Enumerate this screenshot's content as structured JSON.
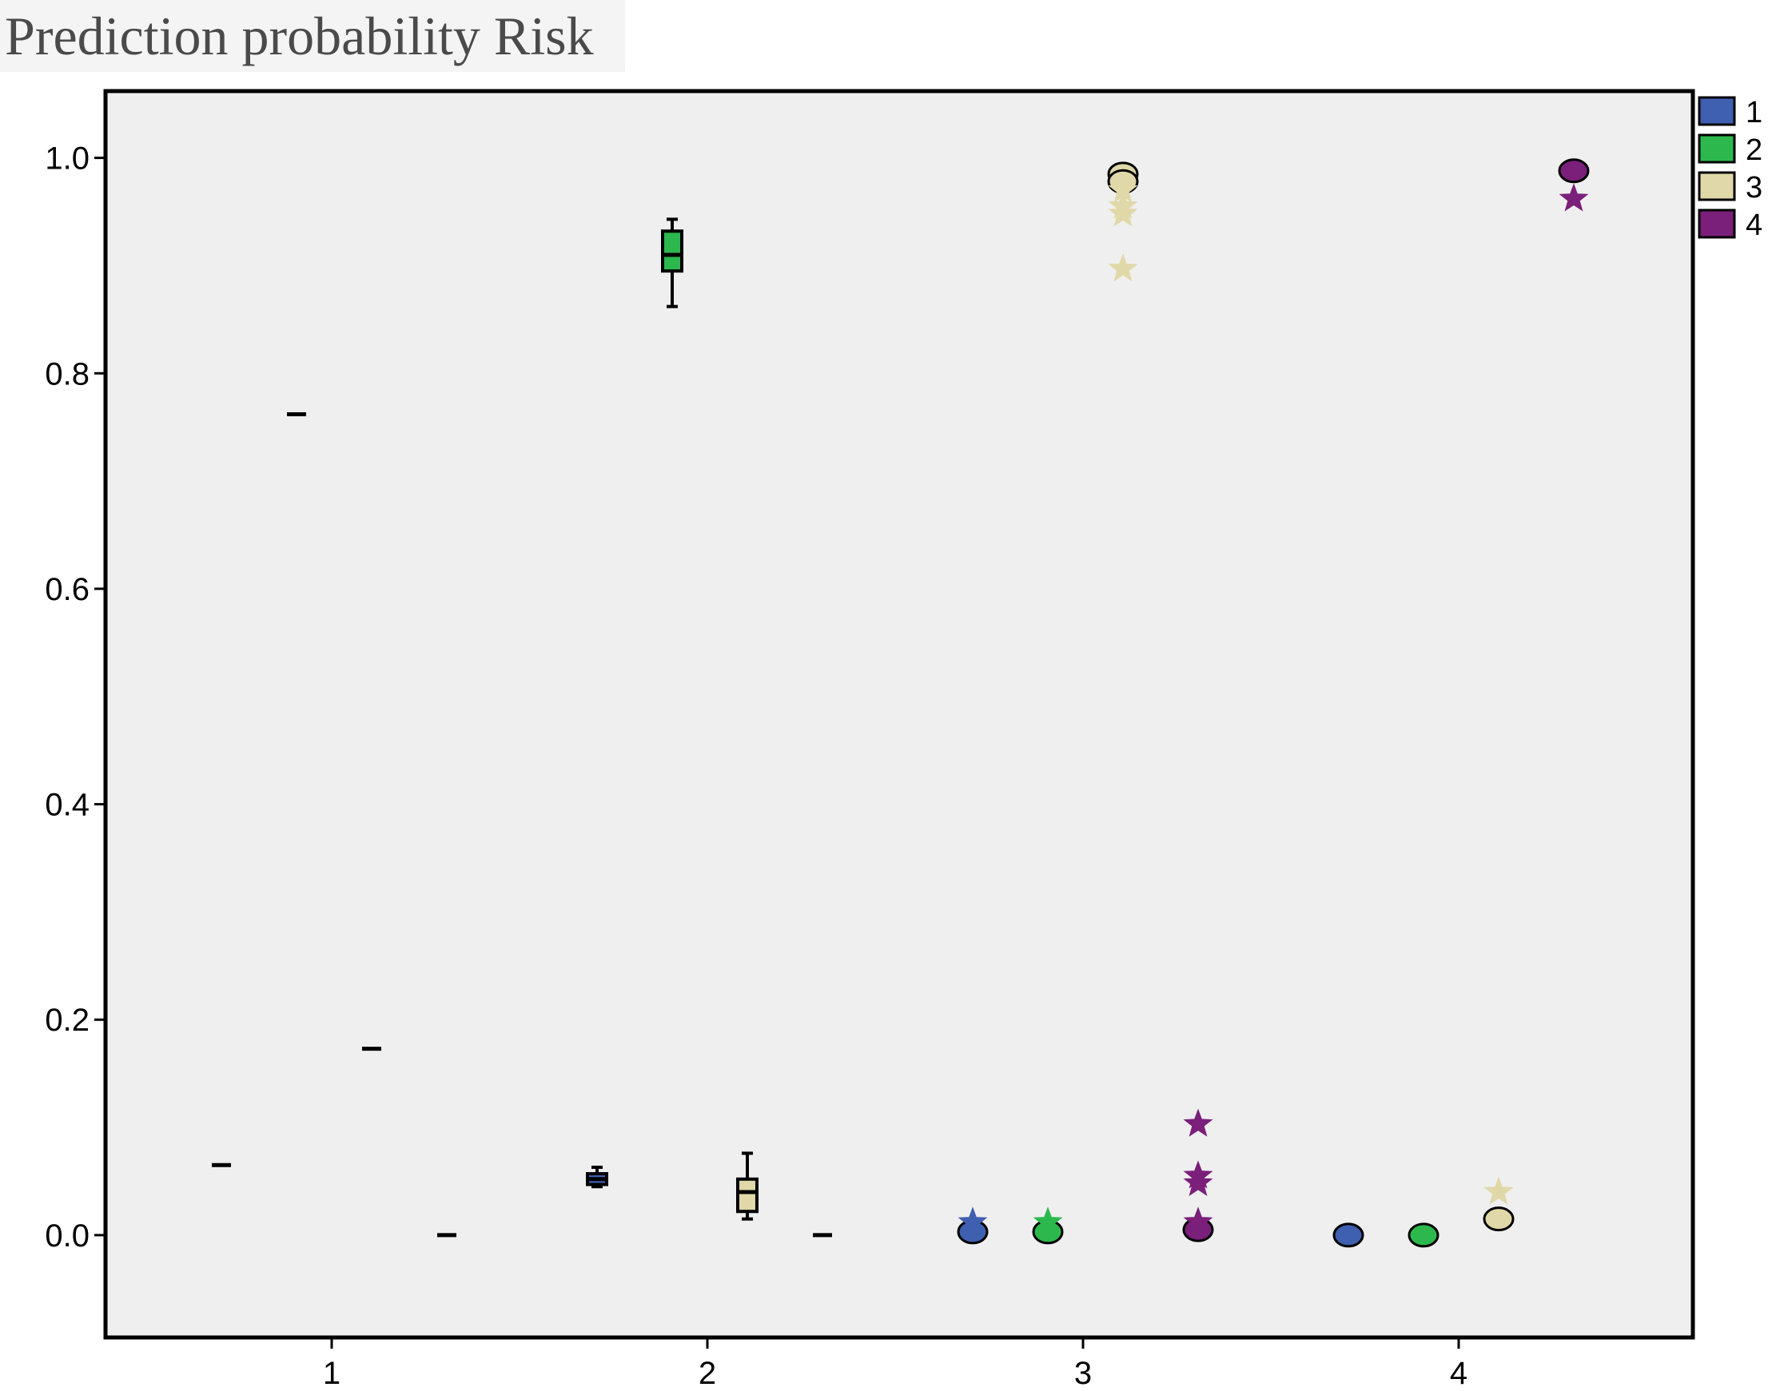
{
  "chart_data": {
    "type": "box",
    "title": "Prediction probability Risk",
    "xlabel": "",
    "ylabel": "",
    "ylim": [
      -0.095,
      1.062
    ],
    "x_ticks": [
      "1",
      "2",
      "3",
      "4"
    ],
    "y_ticks": [
      "0.0",
      "0.2",
      "0.4",
      "0.6",
      "0.8",
      "1.0"
    ],
    "legend_placement": "right",
    "series": [
      {
        "name": "1",
        "color": "#3f5fb0"
      },
      {
        "name": "2",
        "color": "#2db84d"
      },
      {
        "name": "3",
        "color": "#e0d8a8"
      },
      {
        "name": "4",
        "color": "#7a1f7a"
      }
    ],
    "boxes": [
      {
        "group": "1",
        "series": "1",
        "min": 0.065,
        "q1": 0.065,
        "median": 0.065,
        "q3": 0.065,
        "max": 0.065
      },
      {
        "group": "1",
        "series": "2",
        "min": 0.762,
        "q1": 0.762,
        "median": 0.762,
        "q3": 0.762,
        "max": 0.762
      },
      {
        "group": "1",
        "series": "3",
        "min": 0.173,
        "q1": 0.173,
        "median": 0.173,
        "q3": 0.173,
        "max": 0.173
      },
      {
        "group": "1",
        "series": "4",
        "min": 0.0,
        "q1": 0.0,
        "median": 0.0,
        "q3": 0.0,
        "max": 0.0
      },
      {
        "group": "2",
        "series": "1",
        "min": 0.045,
        "q1": 0.047,
        "median": 0.052,
        "q3": 0.057,
        "max": 0.063
      },
      {
        "group": "2",
        "series": "2",
        "min": 0.862,
        "q1": 0.895,
        "median": 0.91,
        "q3": 0.932,
        "max": 0.943
      },
      {
        "group": "2",
        "series": "3",
        "min": 0.015,
        "q1": 0.022,
        "median": 0.04,
        "q3": 0.052,
        "max": 0.076
      },
      {
        "group": "2",
        "series": "4",
        "min": 0.0,
        "q1": 0.0,
        "median": 0.0,
        "q3": 0.0,
        "max": 0.0
      },
      {
        "group": "3",
        "series": "1",
        "min": 0.0,
        "q1": 0.002,
        "median": 0.004,
        "q3": 0.006,
        "max": 0.008
      },
      {
        "group": "3",
        "series": "2",
        "min": 0.0,
        "q1": 0.002,
        "median": 0.004,
        "q3": 0.006,
        "max": 0.008
      },
      {
        "group": "3",
        "series": "3",
        "min": 0.99,
        "q1": 0.99,
        "median": 0.99,
        "q3": 0.99,
        "max": 0.99
      },
      {
        "group": "3",
        "series": "4",
        "min": 0.0,
        "q1": 0.002,
        "median": 0.004,
        "q3": 0.006,
        "max": 0.008
      },
      {
        "group": "4",
        "series": "1",
        "min": 0.0,
        "q1": 0.0,
        "median": 0.0,
        "q3": 0.0,
        "max": 0.0
      },
      {
        "group": "4",
        "series": "2",
        "min": 0.0,
        "q1": 0.0,
        "median": 0.0,
        "q3": 0.0,
        "max": 0.0
      },
      {
        "group": "4",
        "series": "3",
        "min": 0.012,
        "q1": 0.012,
        "median": 0.012,
        "q3": 0.012,
        "max": 0.012
      },
      {
        "group": "4",
        "series": "4",
        "min": 0.987,
        "q1": 0.987,
        "median": 0.987,
        "q3": 0.987,
        "max": 0.987
      }
    ],
    "outliers": [
      {
        "group": "1",
        "series": "1",
        "type": "circle",
        "values": []
      },
      {
        "group": "3",
        "series": "1",
        "type": "circle",
        "values": [
          0.003
        ]
      },
      {
        "group": "3",
        "series": "1",
        "type": "star",
        "values": [
          0.012
        ]
      },
      {
        "group": "3",
        "series": "2",
        "type": "circle",
        "values": [
          0.003
        ]
      },
      {
        "group": "3",
        "series": "2",
        "type": "star",
        "values": [
          0.012
        ]
      },
      {
        "group": "3",
        "series": "3",
        "type": "circle",
        "values": [
          0.985,
          0.978
        ]
      },
      {
        "group": "3",
        "series": "3",
        "type": "star",
        "values": [
          0.97,
          0.955,
          0.948,
          0.897
        ]
      },
      {
        "group": "3",
        "series": "4",
        "type": "circle",
        "values": [
          0.005
        ]
      },
      {
        "group": "3",
        "series": "4",
        "type": "star",
        "values": [
          0.103,
          0.055,
          0.048,
          0.012
        ]
      },
      {
        "group": "4",
        "series": "1",
        "type": "circle",
        "values": [
          0.0
        ]
      },
      {
        "group": "4",
        "series": "2",
        "type": "circle",
        "values": [
          0.0
        ]
      },
      {
        "group": "4",
        "series": "3",
        "type": "circle",
        "values": [
          0.015
        ]
      },
      {
        "group": "4",
        "series": "3",
        "type": "star",
        "values": [
          0.04
        ]
      },
      {
        "group": "4",
        "series": "4",
        "type": "circle",
        "values": [
          0.988
        ]
      },
      {
        "group": "4",
        "series": "4",
        "type": "star",
        "values": [
          0.962
        ]
      }
    ]
  }
}
